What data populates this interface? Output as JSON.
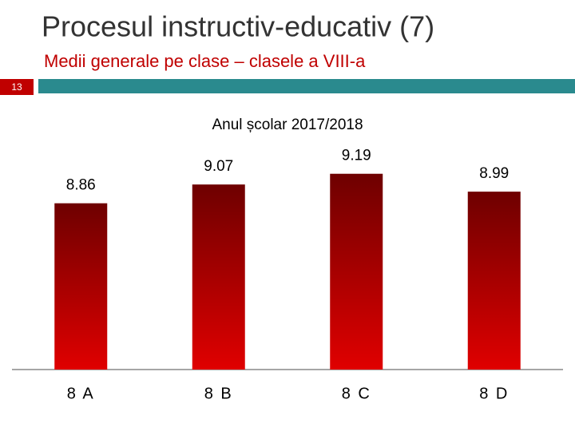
{
  "slide": {
    "title": "Procesul instructiv-educativ (7)",
    "subtitle": "Medii generale pe clase – clasele a VIII-a",
    "number": "13"
  },
  "chart_data": {
    "type": "bar",
    "title": "Anul școlar 2017/2018",
    "categories": [
      "8 A",
      "8 B",
      "8 C",
      "8 D"
    ],
    "values": [
      8.86,
      9.07,
      9.19,
      8.99
    ],
    "color": "#c00000",
    "ylim": [
      7,
      10
    ]
  }
}
